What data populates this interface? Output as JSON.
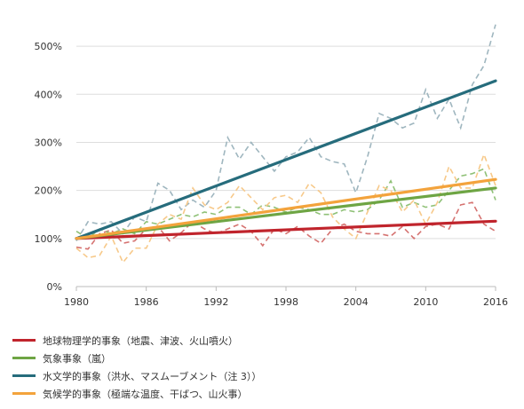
{
  "chart_data": {
    "type": "line",
    "x": [
      1980,
      1981,
      1982,
      1983,
      1984,
      1985,
      1986,
      1987,
      1988,
      1989,
      1990,
      1991,
      1992,
      1993,
      1994,
      1995,
      1996,
      1997,
      1998,
      1999,
      2000,
      2001,
      2002,
      2003,
      2004,
      2005,
      2006,
      2007,
      2008,
      2009,
      2010,
      2011,
      2012,
      2013,
      2014,
      2015,
      2016
    ],
    "xticks": [
      1980,
      1986,
      1992,
      1998,
      2004,
      2010,
      2016
    ],
    "xlim": [
      1980,
      2016
    ],
    "ylim": [
      0,
      550
    ],
    "yticks": [
      {
        "value": 0,
        "label": "0%"
      },
      {
        "value": 100,
        "label": "100%"
      },
      {
        "value": 200,
        "label": "200%"
      },
      {
        "value": 300,
        "label": "300%"
      },
      {
        "value": 400,
        "label": "400%"
      },
      {
        "value": 500,
        "label": "500%"
      }
    ],
    "grid": true,
    "legend_position": "bottom-left",
    "series": [
      {
        "name": "地球物理学的事象（地震、津波、火山噴火）",
        "color": "#c0242c",
        "values": [
          82,
          78,
          110,
          118,
          90,
          95,
          120,
          125,
          95,
          112,
          135,
          120,
          110,
          120,
          130,
          115,
          85,
          120,
          110,
          125,
          105,
          90,
          120,
          130,
          115,
          110,
          110,
          105,
          125,
          100,
          125,
          130,
          120,
          170,
          175,
          130,
          115
        ],
        "trend": [
          100,
          136
        ]
      },
      {
        "name": "気象事象（嵐）",
        "color": "#6ea544",
        "values": [
          115,
          100,
          120,
          110,
          120,
          110,
          135,
          130,
          140,
          150,
          145,
          155,
          150,
          165,
          165,
          150,
          170,
          165,
          155,
          165,
          160,
          150,
          150,
          160,
          155,
          160,
          180,
          220,
          165,
          175,
          165,
          170,
          200,
          230,
          235,
          245,
          180
        ],
        "trend": [
          100,
          205
        ]
      },
      {
        "name": "水文学的事象（洪水、マスムーブメント（注 3））",
        "color": "#266c7c",
        "values": [
          95,
          135,
          130,
          135,
          110,
          145,
          135,
          215,
          200,
          160,
          180,
          165,
          200,
          310,
          265,
          300,
          270,
          240,
          270,
          280,
          310,
          270,
          260,
          255,
          195,
          270,
          360,
          350,
          330,
          340,
          410,
          350,
          390,
          330,
          420,
          460,
          545
        ],
        "trend": [
          100,
          428
        ]
      },
      {
        "name": "気候学的事象（極端な温度、干ばつ、山火事）",
        "color": "#f3a33c",
        "values": [
          80,
          60,
          65,
          105,
          50,
          80,
          80,
          130,
          150,
          140,
          205,
          170,
          160,
          175,
          210,
          185,
          160,
          185,
          190,
          175,
          215,
          195,
          145,
          120,
          100,
          155,
          210,
          200,
          155,
          180,
          130,
          175,
          250,
          205,
          205,
          275,
          210
        ],
        "trend": [
          100,
          223
        ]
      }
    ]
  }
}
